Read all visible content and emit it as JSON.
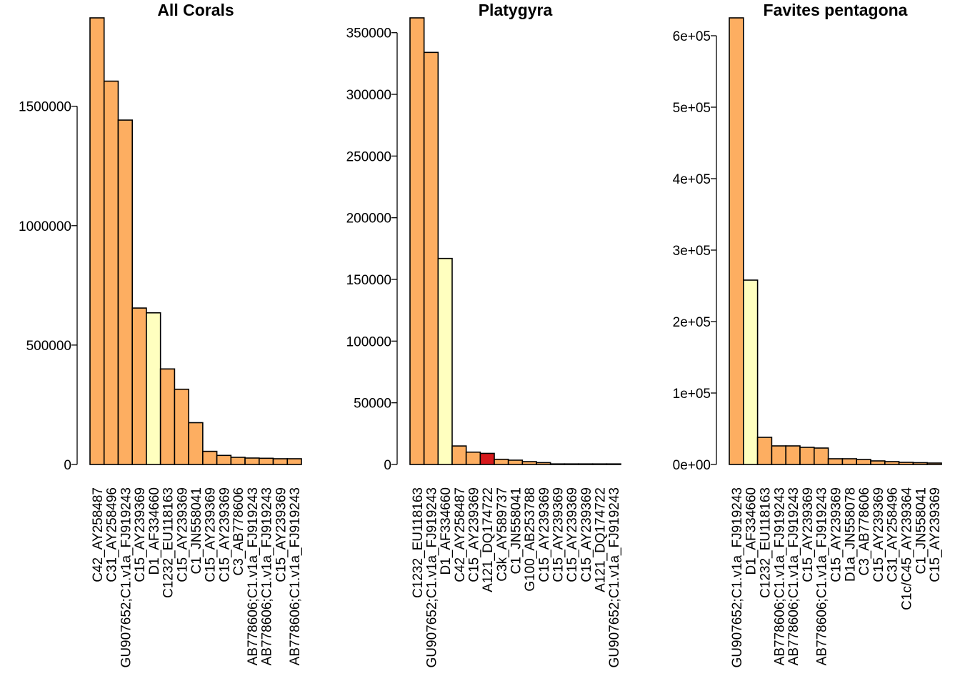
{
  "colors": {
    "orange": "#FDAE61",
    "yellow": "#FFFFBF",
    "red": "#D7191C",
    "stroke": "#000000"
  },
  "chart_data": [
    {
      "type": "bar",
      "title": "All Corals",
      "xlabel": "",
      "ylabel": "",
      "ylim": [
        0,
        1870000
      ],
      "yticks": [
        0,
        500000,
        1000000,
        1500000
      ],
      "ytick_labels": [
        "0",
        "500000",
        "1000000",
        "1500000"
      ],
      "categories": [
        "C42_AY258487",
        "C31_AY258496",
        "GU907652;C1.v1a_FJ919243",
        "C15_AY239369",
        "D1_AF334660",
        "C1232_EU118163",
        "C15_AY239369",
        "C1_JN558041",
        "C15_AY239369",
        "C15_AY239369",
        "C3_AB778606",
        "AB778606;C1.v1a_FJ919243",
        "AB778606;C1.v1a_FJ919243",
        "C15_AY239369",
        "AB778606;C1.v1a_FJ919243"
      ],
      "values": [
        1870000,
        1605000,
        1442000,
        655000,
        635000,
        400000,
        315000,
        175000,
        55000,
        38000,
        30000,
        27000,
        26000,
        24000,
        24000
      ],
      "bar_colors": [
        "orange",
        "orange",
        "orange",
        "orange",
        "yellow",
        "orange",
        "orange",
        "orange",
        "orange",
        "orange",
        "orange",
        "orange",
        "orange",
        "orange",
        "orange"
      ]
    },
    {
      "type": "bar",
      "title": "Platygyra",
      "xlabel": "",
      "ylabel": "",
      "ylim": [
        0,
        362000
      ],
      "yticks": [
        0,
        50000,
        100000,
        150000,
        200000,
        250000,
        300000,
        350000
      ],
      "ytick_labels": [
        "0",
        "50000",
        "100000",
        "150000",
        "200000",
        "250000",
        "300000",
        "350000"
      ],
      "categories": [
        "C1232_EU118163",
        "GU907652;C1.v1a_FJ919243",
        "D1_AF334660",
        "C42_AY258487",
        "C15_AY239369",
        "A121_DQ174722",
        "C3k_AY589737",
        "C1_JN558041",
        "G100_AB253788",
        "C15_AY239369",
        "C15_AY239369",
        "C15_AY239369",
        "C15_AY239369",
        "A121_DQ174722",
        "GU907652;C1.v1a_FJ919243"
      ],
      "values": [
        362000,
        334000,
        167000,
        15000,
        10000,
        9000,
        4200,
        3500,
        2300,
        1500,
        400,
        300,
        200,
        150,
        100
      ],
      "bar_colors": [
        "orange",
        "orange",
        "yellow",
        "orange",
        "orange",
        "red",
        "orange",
        "orange",
        "orange",
        "orange",
        "orange",
        "orange",
        "orange",
        "orange",
        "orange"
      ]
    },
    {
      "type": "bar",
      "title": "Favites pentagona",
      "xlabel": "",
      "ylabel": "",
      "ylim": [
        0,
        625000
      ],
      "yticks": [
        0,
        100000,
        200000,
        300000,
        400000,
        500000,
        600000
      ],
      "ytick_labels": [
        "0e+00",
        "1e+05",
        "2e+05",
        "3e+05",
        "4e+05",
        "5e+05",
        "6e+05"
      ],
      "categories": [
        "GU907652;C1.v1a_FJ919243",
        "D1_AF334660",
        "C1232_EU118163",
        "AB778606;C1.v1a_FJ919243",
        "AB778606;C1.v1a_FJ919243",
        "C15_AY239369",
        "AB778606;C1.v1a_FJ919243",
        "C15_AY239369",
        "D1a_JN558078",
        "C3_AB778606",
        "C15_AY239369",
        "C31_AY258496",
        "C1c/C45_AY239364",
        "C1_JN558041",
        "C15_AY239369"
      ],
      "values": [
        625000,
        258000,
        38000,
        26000,
        26000,
        24000,
        23000,
        8000,
        8000,
        7000,
        5000,
        4000,
        3000,
        2500,
        2000
      ],
      "bar_colors": [
        "orange",
        "yellow",
        "orange",
        "orange",
        "orange",
        "orange",
        "orange",
        "orange",
        "orange",
        "orange",
        "orange",
        "orange",
        "orange",
        "orange",
        "orange"
      ]
    }
  ]
}
